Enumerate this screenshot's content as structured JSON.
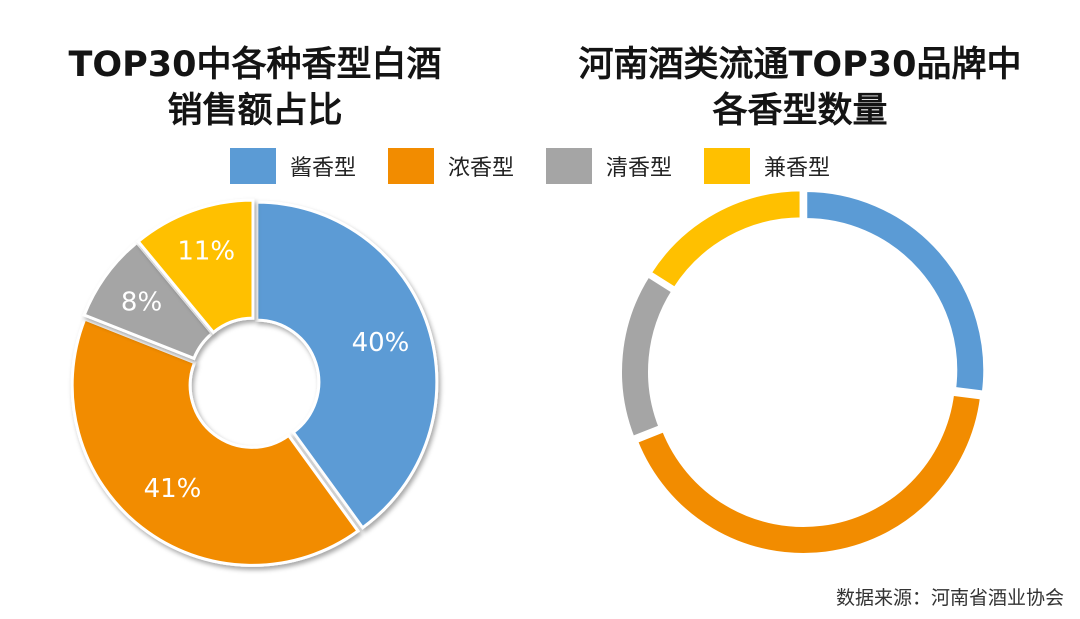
{
  "legend": [
    {
      "name": "酱香型",
      "color": "#5B9BD5"
    },
    {
      "name": "浓香型",
      "color": "#F28C00"
    },
    {
      "name": "清香型",
      "color": "#A5A5A5"
    },
    {
      "name": "兼香型",
      "color": "#FFC000"
    }
  ],
  "source": "数据来源：河南省酒业协会",
  "chart_data": [
    {
      "type": "pie",
      "title": "TOP30中各种香型白酒销售额占比",
      "title_lines": [
        "TOP30中各种香型白酒",
        "销售额占比"
      ],
      "categories": [
        "酱香型",
        "浓香型",
        "清香型",
        "兼香型"
      ],
      "values": [
        40,
        41,
        8,
        11
      ],
      "labels": [
        "40%",
        "41%",
        "8%",
        "11%"
      ],
      "colors": [
        "#5B9BD5",
        "#F28C00",
        "#A5A5A5",
        "#FFC000"
      ],
      "legend": "top"
    },
    {
      "type": "pie",
      "title": "河南酒类流通TOP30品牌中各香型数量",
      "title_lines": [
        "河南酒类流通TOP30品牌中",
        "各香型数量"
      ],
      "categories": [
        "酱香型",
        "浓香型",
        "清香型",
        "兼香型"
      ],
      "values": [
        27,
        42,
        15,
        16
      ],
      "colors": [
        "#5B9BD5",
        "#F28C00",
        "#A5A5A5",
        "#FFC000"
      ],
      "legend": "top"
    }
  ]
}
